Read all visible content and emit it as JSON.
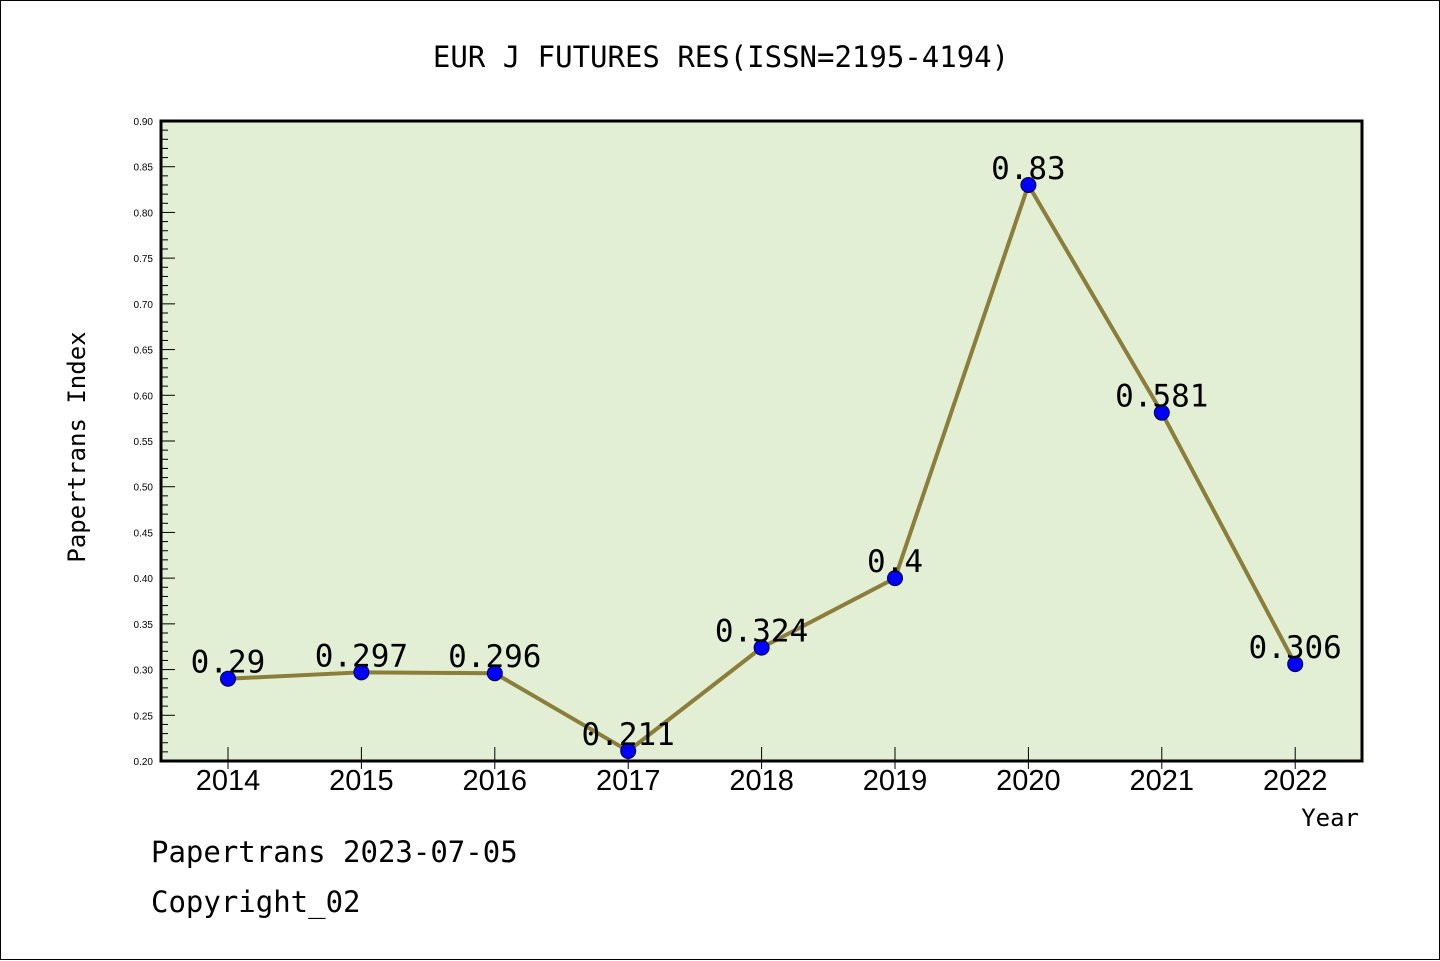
{
  "chart_data": {
    "type": "line",
    "title": "EUR J FUTURES RES(ISSN=2195-4194)",
    "xlabel": "Year",
    "ylabel": "Papertrans Index",
    "categories": [
      "2014",
      "2015",
      "2016",
      "2017",
      "2018",
      "2019",
      "2020",
      "2021",
      "2022"
    ],
    "series": [
      {
        "values": [
          0.29,
          0.297,
          0.296,
          0.211,
          0.324,
          0.4,
          0.83,
          0.581,
          0.306
        ],
        "labels": [
          "0.29",
          "0.297",
          "0.296",
          "0.211",
          "0.324",
          "0.4",
          "0.83",
          "0.581",
          "0.306"
        ]
      }
    ],
    "ylim": [
      0.2,
      0.9
    ],
    "yticks": [
      "0.20",
      "0.25",
      "0.30",
      "0.35",
      "0.40",
      "0.45",
      "0.50",
      "0.55",
      "0.60",
      "0.65",
      "0.70",
      "0.75",
      "0.80",
      "0.85",
      "0.90"
    ],
    "grid": false,
    "colors": {
      "plot_background": "#e2efd5",
      "line": "#8b7d3a",
      "marker": "#0000ff"
    }
  },
  "footer": {
    "date_text": "Papertrans 2023-07-05",
    "copyright_text": "Copyright_02"
  }
}
